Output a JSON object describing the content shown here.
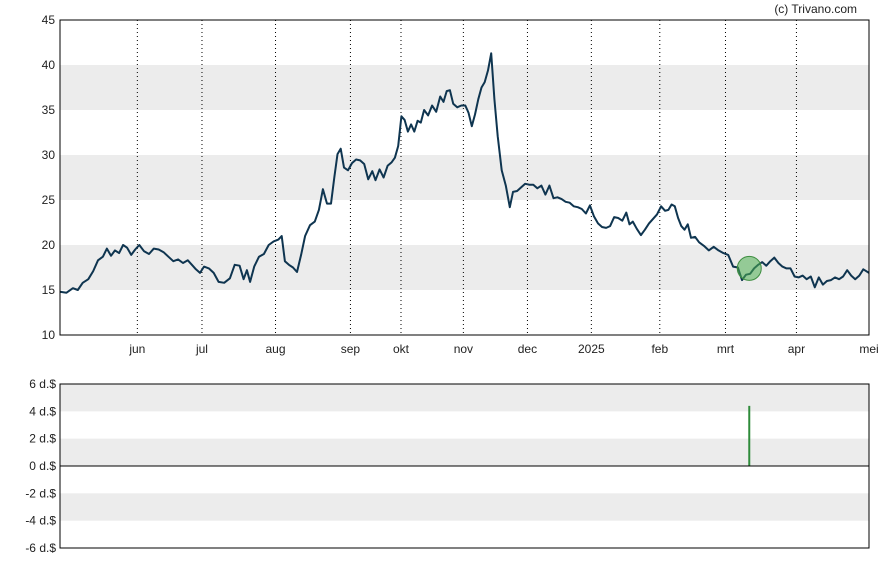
{
  "credit": "(c) Trivano.com",
  "colors": {
    "band": "#ececec",
    "line": "#0f3550",
    "marker": "#4caf50",
    "bar": "#2e8b3a",
    "frame": "#000000"
  },
  "chart_data": [
    {
      "type": "line",
      "title": "",
      "xlabel": "",
      "ylabel": "",
      "ylim": [
        10,
        45
      ],
      "y_ticks": [
        "10",
        "15",
        "20",
        "25",
        "30",
        "35",
        "40",
        "45"
      ],
      "x_tick_labels": [
        "jun",
        "jul",
        "aug",
        "sep",
        "okt",
        "nov",
        "dec",
        "2025",
        "feb",
        "mrt",
        "apr",
        "mei"
      ],
      "x_tick_positions": [
        0.0956,
        0.1755,
        0.2664,
        0.359,
        0.4215,
        0.4986,
        0.5778,
        0.6568,
        0.7414,
        0.8226,
        0.9103,
        1.0
      ],
      "grid": "vertical dotted lines at month ticks; alternating shaded horizontal bands",
      "marker": {
        "x": 0.852,
        "y": 17.4
      },
      "series": [
        {
          "values": [
            [
              0.0,
              14.8
            ],
            [
              0.008,
              14.7
            ],
            [
              0.016,
              15.2
            ],
            [
              0.022,
              15.0
            ],
            [
              0.028,
              15.8
            ],
            [
              0.035,
              16.2
            ],
            [
              0.041,
              17.1
            ],
            [
              0.047,
              18.3
            ],
            [
              0.053,
              18.7
            ],
            [
              0.058,
              19.6
            ],
            [
              0.063,
              18.8
            ],
            [
              0.068,
              19.4
            ],
            [
              0.073,
              19.1
            ],
            [
              0.078,
              20.0
            ],
            [
              0.083,
              19.7
            ],
            [
              0.088,
              18.9
            ],
            [
              0.093,
              19.5
            ],
            [
              0.098,
              20.0
            ],
            [
              0.104,
              19.3
            ],
            [
              0.11,
              19.0
            ],
            [
              0.116,
              19.6
            ],
            [
              0.122,
              19.5
            ],
            [
              0.128,
              19.2
            ],
            [
              0.134,
              18.7
            ],
            [
              0.14,
              18.2
            ],
            [
              0.146,
              18.4
            ],
            [
              0.152,
              18.0
            ],
            [
              0.158,
              18.3
            ],
            [
              0.163,
              17.8
            ],
            [
              0.168,
              17.3
            ],
            [
              0.173,
              16.9
            ],
            [
              0.178,
              17.6
            ],
            [
              0.184,
              17.4
            ],
            [
              0.19,
              16.9
            ],
            [
              0.196,
              15.9
            ],
            [
              0.203,
              15.8
            ],
            [
              0.21,
              16.3
            ],
            [
              0.216,
              17.8
            ],
            [
              0.222,
              17.7
            ],
            [
              0.227,
              16.2
            ],
            [
              0.231,
              17.2
            ],
            [
              0.235,
              15.9
            ],
            [
              0.24,
              17.6
            ],
            [
              0.246,
              18.7
            ],
            [
              0.252,
              19.0
            ],
            [
              0.258,
              20.0
            ],
            [
              0.264,
              20.4
            ],
            [
              0.27,
              20.6
            ],
            [
              0.274,
              21.0
            ],
            [
              0.278,
              18.2
            ],
            [
              0.283,
              17.8
            ],
            [
              0.288,
              17.5
            ],
            [
              0.293,
              17.0
            ],
            [
              0.298,
              18.9
            ],
            [
              0.303,
              21.0
            ],
            [
              0.309,
              22.2
            ],
            [
              0.315,
              22.6
            ],
            [
              0.32,
              23.9
            ],
            [
              0.325,
              26.2
            ],
            [
              0.33,
              24.6
            ],
            [
              0.335,
              24.6
            ],
            [
              0.339,
              27.5
            ],
            [
              0.343,
              30.1
            ],
            [
              0.347,
              30.7
            ],
            [
              0.351,
              28.6
            ],
            [
              0.356,
              28.3
            ],
            [
              0.361,
              29.1
            ],
            [
              0.366,
              29.5
            ],
            [
              0.371,
              29.4
            ],
            [
              0.376,
              29.0
            ],
            [
              0.381,
              27.3
            ],
            [
              0.386,
              28.2
            ],
            [
              0.39,
              27.2
            ],
            [
              0.395,
              28.4
            ],
            [
              0.4,
              27.5
            ],
            [
              0.405,
              28.8
            ],
            [
              0.41,
              29.2
            ],
            [
              0.414,
              29.7
            ],
            [
              0.418,
              31.0
            ],
            [
              0.422,
              34.3
            ],
            [
              0.426,
              33.9
            ],
            [
              0.43,
              32.6
            ],
            [
              0.434,
              33.4
            ],
            [
              0.438,
              32.6
            ],
            [
              0.442,
              33.8
            ],
            [
              0.446,
              33.6
            ],
            [
              0.45,
              35.0
            ],
            [
              0.455,
              34.4
            ],
            [
              0.46,
              35.5
            ],
            [
              0.465,
              34.8
            ],
            [
              0.47,
              36.5
            ],
            [
              0.474,
              35.9
            ],
            [
              0.478,
              37.1
            ],
            [
              0.482,
              37.2
            ],
            [
              0.486,
              35.7
            ],
            [
              0.491,
              35.3
            ],
            [
              0.496,
              35.5
            ],
            [
              0.501,
              35.5
            ],
            [
              0.505,
              34.7
            ],
            [
              0.509,
              33.2
            ],
            [
              0.513,
              34.5
            ],
            [
              0.517,
              36.2
            ],
            [
              0.521,
              37.5
            ],
            [
              0.525,
              38.1
            ],
            [
              0.529,
              39.4
            ],
            [
              0.533,
              41.3
            ],
            [
              0.537,
              36.2
            ],
            [
              0.541,
              32.1
            ],
            [
              0.546,
              28.3
            ],
            [
              0.551,
              26.6
            ],
            [
              0.556,
              24.2
            ],
            [
              0.56,
              25.9
            ],
            [
              0.565,
              26.0
            ],
            [
              0.57,
              26.4
            ],
            [
              0.575,
              26.8
            ],
            [
              0.58,
              26.7
            ],
            [
              0.585,
              26.7
            ],
            [
              0.59,
              26.3
            ],
            [
              0.595,
              26.6
            ],
            [
              0.6,
              25.6
            ],
            [
              0.605,
              26.6
            ],
            [
              0.61,
              25.2
            ],
            [
              0.615,
              25.3
            ],
            [
              0.62,
              25.1
            ],
            [
              0.625,
              24.8
            ],
            [
              0.63,
              24.7
            ],
            [
              0.635,
              24.3
            ],
            [
              0.64,
              24.2
            ],
            [
              0.645,
              24.0
            ],
            [
              0.65,
              23.5
            ],
            [
              0.655,
              24.4
            ],
            [
              0.66,
              23.2
            ],
            [
              0.665,
              22.4
            ],
            [
              0.67,
              22.0
            ],
            [
              0.675,
              21.9
            ],
            [
              0.68,
              22.1
            ],
            [
              0.685,
              23.1
            ],
            [
              0.69,
              23.0
            ],
            [
              0.695,
              22.7
            ],
            [
              0.7,
              23.6
            ],
            [
              0.704,
              22.3
            ],
            [
              0.708,
              22.6
            ],
            [
              0.713,
              21.8
            ],
            [
              0.718,
              21.1
            ],
            [
              0.723,
              21.7
            ],
            [
              0.728,
              22.4
            ],
            [
              0.733,
              22.9
            ],
            [
              0.738,
              23.4
            ],
            [
              0.743,
              24.3
            ],
            [
              0.748,
              23.8
            ],
            [
              0.752,
              23.9
            ],
            [
              0.756,
              24.5
            ],
            [
              0.76,
              24.3
            ],
            [
              0.764,
              23.0
            ],
            [
              0.768,
              22.1
            ],
            [
              0.772,
              21.7
            ],
            [
              0.776,
              22.3
            ],
            [
              0.78,
              20.8
            ],
            [
              0.785,
              20.9
            ],
            [
              0.79,
              20.3
            ],
            [
              0.796,
              19.9
            ],
            [
              0.802,
              19.4
            ],
            [
              0.808,
              19.8
            ],
            [
              0.814,
              19.4
            ],
            [
              0.82,
              19.1
            ],
            [
              0.826,
              18.9
            ],
            [
              0.832,
              17.6
            ],
            [
              0.838,
              17.5
            ],
            [
              0.843,
              16.1
            ],
            [
              0.848,
              16.7
            ],
            [
              0.853,
              16.8
            ],
            [
              0.858,
              17.4
            ],
            [
              0.863,
              17.8
            ],
            [
              0.868,
              18.1
            ],
            [
              0.873,
              17.7
            ],
            [
              0.878,
              18.2
            ],
            [
              0.883,
              18.6
            ],
            [
              0.888,
              18.0
            ],
            [
              0.893,
              17.6
            ],
            [
              0.898,
              17.4
            ],
            [
              0.903,
              17.4
            ],
            [
              0.908,
              16.5
            ],
            [
              0.913,
              16.4
            ],
            [
              0.918,
              16.6
            ],
            [
              0.923,
              16.2
            ],
            [
              0.928,
              16.5
            ],
            [
              0.933,
              15.3
            ],
            [
              0.938,
              16.4
            ],
            [
              0.943,
              15.6
            ],
            [
              0.948,
              16.0
            ],
            [
              0.953,
              16.1
            ],
            [
              0.958,
              16.4
            ],
            [
              0.963,
              16.2
            ],
            [
              0.968,
              16.5
            ],
            [
              0.973,
              17.2
            ],
            [
              0.978,
              16.6
            ],
            [
              0.983,
              16.2
            ],
            [
              0.988,
              16.6
            ],
            [
              0.993,
              17.3
            ],
            [
              1.0,
              16.9
            ]
          ]
        }
      ]
    },
    {
      "type": "bar",
      "title": "",
      "xlabel": "",
      "ylabel": "",
      "ylim": [
        -6,
        6
      ],
      "y_ticks": [
        "6 d.$",
        "4 d.$",
        "2 d.$",
        "0 d.$",
        "-2 d.$",
        "-4 d.$",
        "-6 d.$"
      ],
      "bars": [
        {
          "x": 0.852,
          "value": 4.4
        }
      ]
    }
  ]
}
